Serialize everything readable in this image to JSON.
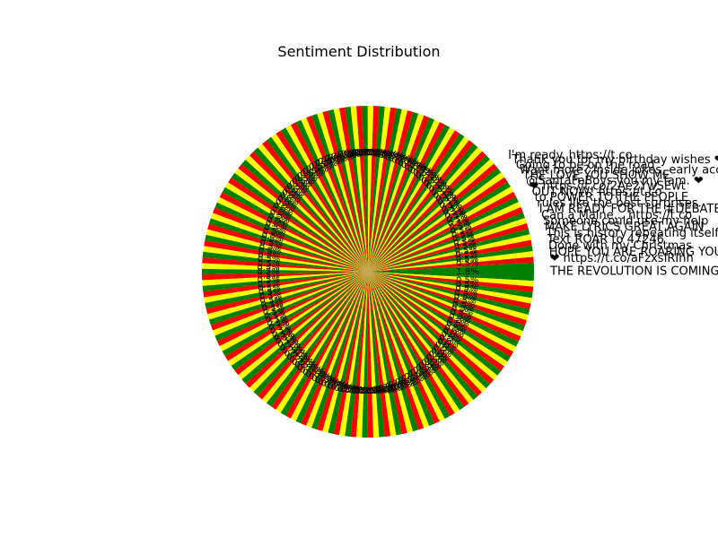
{
  "chart_data": {
    "type": "pie",
    "title": "Sentiment Distribution",
    "xlabel": "",
    "ylabel": "",
    "legend": "none",
    "grid": false,
    "note": "Very dense pie (~180 thin wedges). Each wedge carries a tweet text as its outer label and a percentage inside; the overlapping labels are mostly unreadable. The largest wedge points right (about 1.8% of the pie).",
    "colors": [
      "#008000",
      "#ff0000",
      "#ffff00"
    ],
    "slice_count": 180,
    "slices": [
      {
        "label": "THE REVOLUTION IS COMING.",
        "value": 0.56,
        "color": "#008000"
      },
      {
        "label": "❤ https://t.co/aFzxsIRIhh",
        "value": 0.56,
        "color": "#ff0000"
      },
      {
        "label": "HOPE YOU ARE ROARING YOU",
        "value": 0.56,
        "color": "#ffff00"
      },
      {
        "label": "Done with my Christmas",
        "value": 0.56,
        "color": "#008000"
      },
      {
        "label": "Text ROAR to 47246",
        "value": 0.56,
        "color": "#ff0000"
      },
      {
        "label": "This is history repeating itself.",
        "value": 0.56,
        "color": "#ffff00"
      },
      {
        "label": "MAKE LYRICS GREAT AGAIN",
        "value": 0.56,
        "color": "#008000"
      },
      {
        "label": "Someone could use my help",
        "value": 0.56,
        "color": "#ff0000"
      },
      {
        "label": "Can a Maine... https://t.co",
        "value": 0.56,
        "color": "#ffff00"
      },
      {
        "label": "I AM READY FOR THE #DEBATES",
        "value": 0.56,
        "color": "#008000"
      },
      {
        "label": "rules like the best surprises.",
        "value": 0.56,
        "color": "#ff0000"
      },
      {
        "label": "to POWER TO THE PEOPLE",
        "value": 0.56,
        "color": "#ffff00"
      },
      {
        "label": "OUT NOW! https://t.co",
        "value": 0.56,
        "color": "#008000"
      },
      {
        "label": "❤ https://t.co/2Ae2YwSEwt",
        "value": 0.56,
        "color": "#ff0000"
      },
      {
        "label": "@SantaFeBoys you my fam. ❤",
        "value": 0.56,
        "color": "#ffff00"
      },
      {
        "label": "THE LOVE YOU SHOW ME",
        "value": 0.56,
        "color": "#008000"
      },
      {
        "label": "Want more? Inside jokes, early access",
        "value": 0.56,
        "color": "#ff0000"
      },
      {
        "label": "Going to be on the road",
        "value": 0.56,
        "color": "#ffff00"
      },
      {
        "label": "Thank you for my birthday wishes ❤",
        "value": 0.56,
        "color": "#008000"
      },
      {
        "label": "I'm ready. https://t.co",
        "value": 0.56,
        "color": "#ff0000"
      }
    ]
  },
  "hidden_slice_labels": "Remaining ~160 wedge labels are overlapping tweet fragments that cannot be read reliably."
}
